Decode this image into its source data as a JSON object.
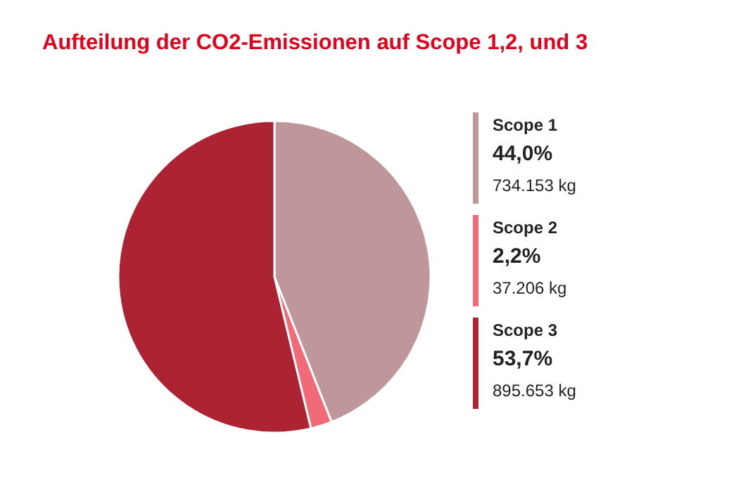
{
  "chart_data": {
    "type": "pie",
    "title": "Aufteilung der CO2-Emissionen auf Scope 1,2, und 3",
    "categories": [
      "Scope 1",
      "Scope 2",
      "Scope 3"
    ],
    "values": [
      44.0,
      2.2,
      53.7
    ],
    "colors": [
      "#bf979a",
      "#f06a78",
      "#ac2333"
    ],
    "value_labels": [
      "44,0%",
      "2,2%",
      "53,7%"
    ],
    "annotations": [
      "734.153 kg",
      "37.206 kg",
      "895.653 kg"
    ],
    "legend": "right"
  }
}
